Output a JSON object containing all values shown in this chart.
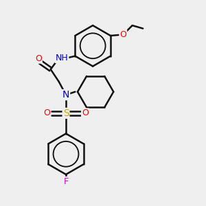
{
  "bg_color": "#efefef",
  "atom_colors": {
    "C": "#000000",
    "N": "#0000cc",
    "O": "#ff0000",
    "S": "#ccaa00",
    "F": "#cc00cc",
    "H": "#444444"
  },
  "bond_color": "#111111",
  "bond_width": 1.8,
  "fig_w": 3.0,
  "fig_h": 3.0,
  "dpi": 100,
  "xlim": [
    0,
    10
  ],
  "ylim": [
    0,
    10
  ]
}
